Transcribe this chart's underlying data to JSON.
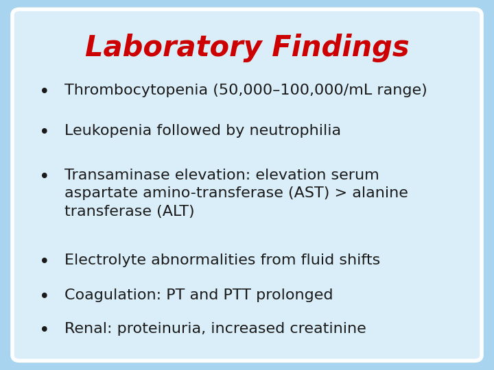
{
  "title": "Laboratory Findings",
  "title_color": "#cc0000",
  "title_fontsize": 30,
  "title_fontstyle": "italic",
  "title_fontfamily": "DejaVu Sans",
  "bullet_color": "#1a1a1a",
  "bullet_fontsize": 16,
  "bullet_fontfamily": "DejaVu Sans",
  "bg_outer": "#a8d4f0",
  "bg_inner": "#daeef9",
  "border_color": "#ffffff",
  "bullets": [
    "Thrombocytopenia (50,000–100,000/mL range)",
    "Leukopenia followed by neutrophilia",
    "Transaminase elevation: elevation serum\naspartate amino-transferase (AST) > alanine\ntransferase (ALT)",
    "Electrolyte abnormalities from fluid shifts",
    "Coagulation: PT and PTT prolonged",
    "Renal: proteinuria, increased creatinine"
  ]
}
